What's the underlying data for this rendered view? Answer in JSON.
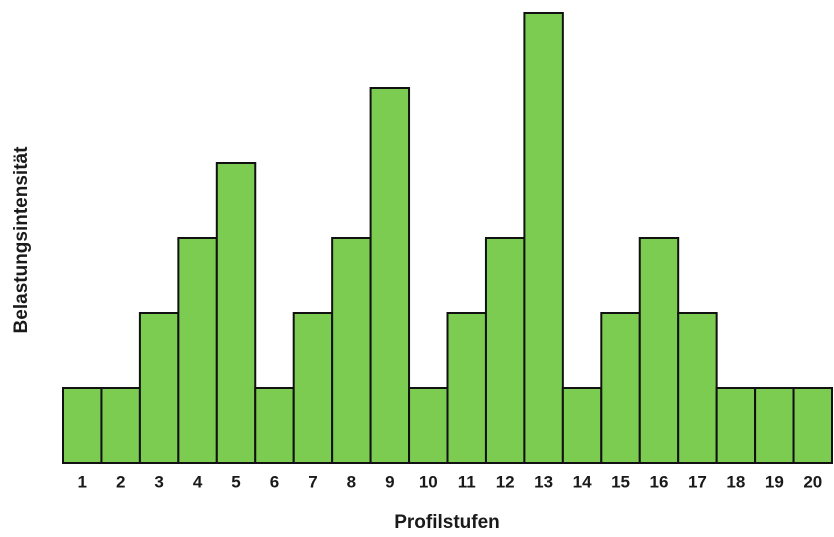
{
  "chart_data": {
    "type": "bar",
    "categories": [
      "1",
      "2",
      "3",
      "4",
      "5",
      "6",
      "7",
      "8",
      "9",
      "10",
      "11",
      "12",
      "13",
      "14",
      "15",
      "16",
      "17",
      "18",
      "19",
      "20"
    ],
    "values": [
      1,
      1,
      2,
      3,
      4,
      1,
      2,
      3,
      5,
      1,
      2,
      3,
      6,
      1,
      2,
      3,
      2,
      1,
      1,
      1
    ],
    "color": "#7dcc52",
    "ylim": [
      0,
      6
    ],
    "x_label": "Profilstufen",
    "y_label": "Belastungsintensität"
  }
}
